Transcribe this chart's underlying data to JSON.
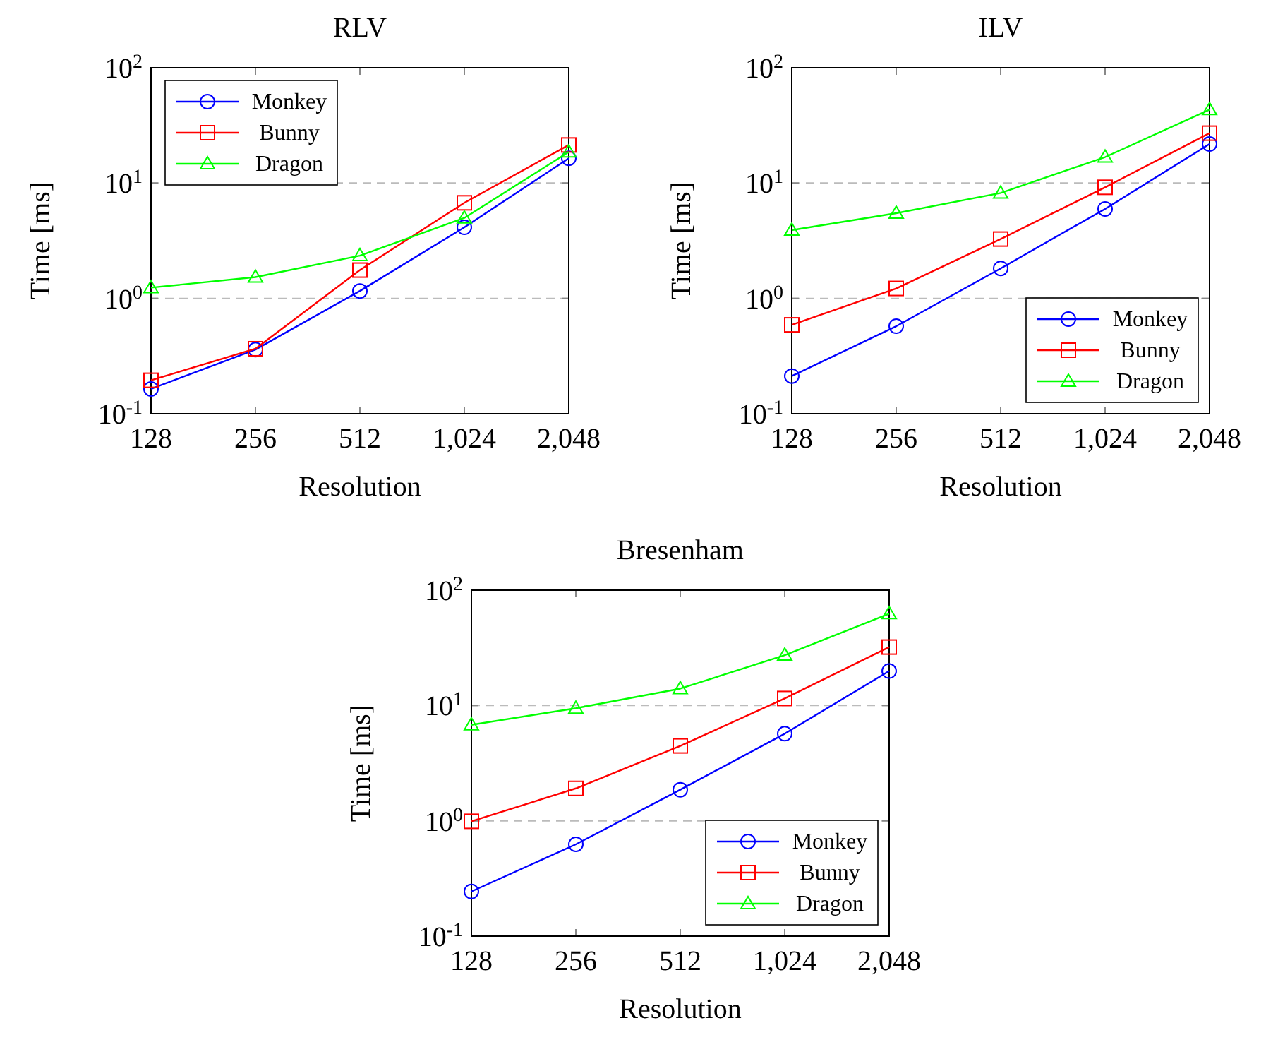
{
  "chart_data": [
    {
      "type": "line",
      "title": "RLV",
      "xlabel": "Resolution",
      "ylabel": "Time [ms]",
      "log": "y",
      "grid": "y",
      "legend": "top left",
      "categories": [
        "128",
        "256",
        "512",
        "1,024",
        "2,048"
      ],
      "ylim": [
        0.1,
        100
      ],
      "yticks": [
        {
          "value": 0.1,
          "label": "10$^{-1}$"
        },
        {
          "value": 1,
          "label": "10$^{0}$"
        },
        {
          "value": 10,
          "label": "10$^{1}$"
        },
        {
          "value": 100,
          "label": "10$^{2}$"
        }
      ],
      "series": [
        {
          "name": "Monkey",
          "color": "#0000ff",
          "marker": "circle",
          "values": [
            0.164,
            0.36,
            1.16,
            4.13,
            16.4
          ]
        },
        {
          "name": "Bunny",
          "color": "#ff0000",
          "marker": "square",
          "values": [
            0.195,
            0.366,
            1.76,
            6.74,
            21.4
          ]
        },
        {
          "name": "Dragon",
          "color": "#00ff00",
          "marker": "triangle",
          "values": [
            1.24,
            1.53,
            2.35,
            4.99,
            18.6
          ]
        }
      ]
    },
    {
      "type": "line",
      "title": "ILV",
      "xlabel": "Resolution",
      "ylabel": "Time [ms]",
      "log": "y",
      "grid": "y",
      "legend": "bottom right",
      "categories": [
        "128",
        "256",
        "512",
        "1,024",
        "2,048"
      ],
      "ylim": [
        0.1,
        100
      ],
      "yticks": [
        {
          "value": 0.1,
          "label": "10$^{-1}$"
        },
        {
          "value": 1,
          "label": "10$^{0}$"
        },
        {
          "value": 10,
          "label": "10$^{1}$"
        },
        {
          "value": 100,
          "label": "10$^{2}$"
        }
      ],
      "series": [
        {
          "name": "Monkey",
          "color": "#0000ff",
          "marker": "circle",
          "values": [
            0.212,
            0.574,
            1.82,
            5.97,
            21.8
          ]
        },
        {
          "name": "Bunny",
          "color": "#ff0000",
          "marker": "square",
          "values": [
            0.59,
            1.22,
            3.27,
            9.19,
            27.1
          ]
        },
        {
          "name": "Dragon",
          "color": "#00ff00",
          "marker": "triangle",
          "values": [
            3.91,
            5.48,
            8.2,
            16.8,
            43.3
          ]
        }
      ]
    },
    {
      "type": "line",
      "title": "Bresenham",
      "xlabel": "Resolution",
      "ylabel": "Time [ms]",
      "log": "y",
      "grid": "y",
      "legend": "bottom right",
      "categories": [
        "128",
        "256",
        "512",
        "1,024",
        "2,048"
      ],
      "ylim": [
        0.1,
        100
      ],
      "yticks": [
        {
          "value": 0.1,
          "label": "10$^{-1}$"
        },
        {
          "value": 1,
          "label": "10$^{0}$"
        },
        {
          "value": 10,
          "label": "10$^{1}$"
        },
        {
          "value": 100,
          "label": "10$^{2}$"
        }
      ],
      "series": [
        {
          "name": "Monkey",
          "color": "#0000ff",
          "marker": "circle",
          "values": [
            0.244,
            0.625,
            1.86,
            5.69,
            19.9
          ]
        },
        {
          "name": "Bunny",
          "color": "#ff0000",
          "marker": "square",
          "values": [
            0.99,
            1.91,
            4.46,
            11.5,
            32.1
          ]
        },
        {
          "name": "Dragon",
          "color": "#00ff00",
          "marker": "triangle",
          "values": [
            6.8,
            9.46,
            14.0,
            27.3,
            62.5
          ]
        }
      ]
    }
  ]
}
